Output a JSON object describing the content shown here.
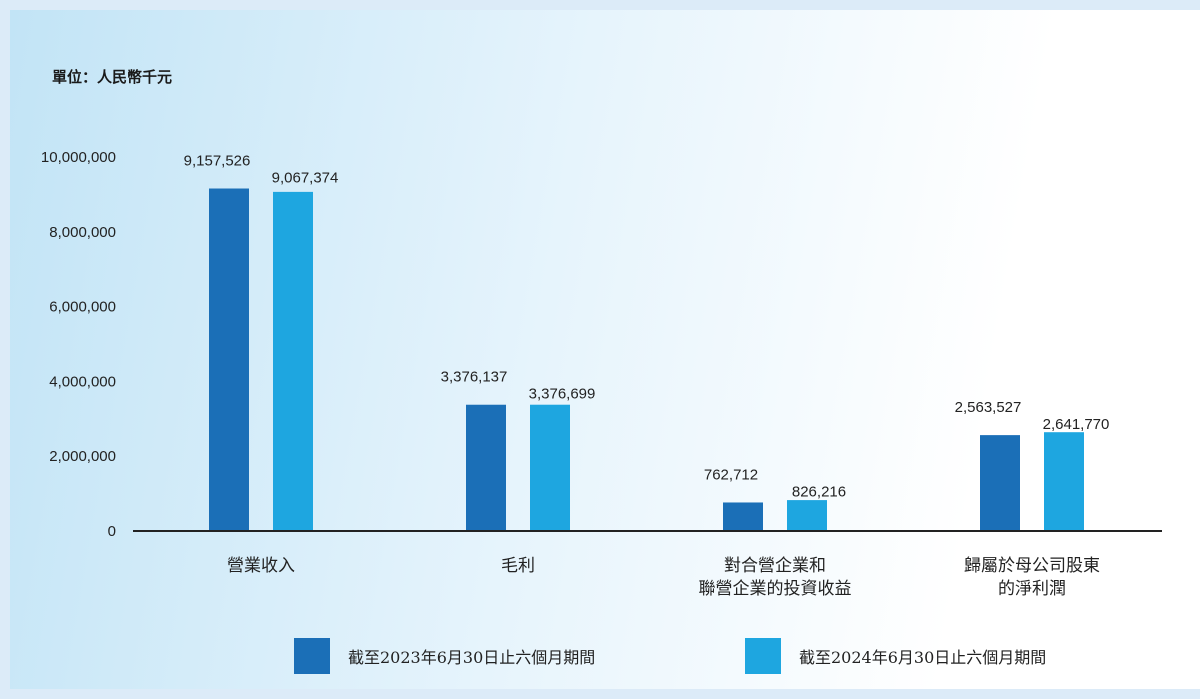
{
  "unit_label": "單位：人民幣千元",
  "colors": {
    "series_2023": "#1b6fb7",
    "series_2024": "#1ea6e0",
    "axis": "#222222"
  },
  "chart_data": {
    "type": "bar",
    "categories": [
      [
        "營業收入"
      ],
      [
        "毛利"
      ],
      [
        "對合營企業和",
        "聯營企業的投資收益"
      ],
      [
        "歸屬於母公司股東",
        "的淨利潤"
      ]
    ],
    "series": [
      {
        "name": "截至2023年6月30日止六個月期間",
        "values": [
          9157526,
          3376137,
          762712,
          2563527
        ],
        "labels": [
          "9,157,526",
          "3,376,137",
          "762,712",
          "2,563,527"
        ]
      },
      {
        "name": "截至2024年6月30日止六個月期間",
        "values": [
          9067374,
          3376699,
          826216,
          2641770
        ],
        "labels": [
          "9,067,374",
          "3,376,699",
          "826,216",
          "2,641,770"
        ]
      }
    ],
    "yticks": [
      "0",
      "2,000,000",
      "4,000,000",
      "6,000,000",
      "8,000,000",
      "10,000,000"
    ],
    "ylim": [
      0,
      10000000
    ],
    "grid": false,
    "legend_position": "bottom"
  }
}
